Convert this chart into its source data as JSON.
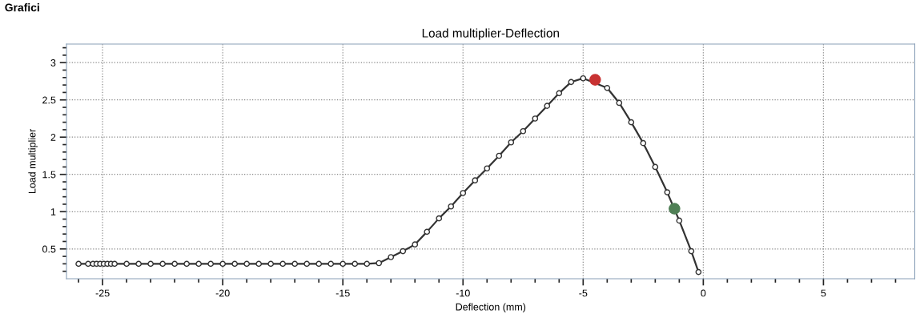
{
  "chart_data": {
    "type": "line",
    "title": "Load multiplier-Deflection",
    "xlabel": "Deflection (mm)",
    "ylabel": "Load multiplier",
    "annotations": [
      "Grafici"
    ],
    "xlim": [
      -26.5,
      8.8
    ],
    "ylim": [
      0.1,
      3.25
    ],
    "xticks": [
      {
        "value": -26,
        "label": null
      },
      -25,
      {
        "value": -24,
        "label": null
      },
      {
        "value": -23,
        "label": null
      },
      {
        "value": -22,
        "label": null
      },
      {
        "value": -21,
        "label": null
      },
      -20,
      {
        "value": -19,
        "label": null
      },
      {
        "value": -18,
        "label": null
      },
      {
        "value": -17,
        "label": null
      },
      {
        "value": -16,
        "label": null
      },
      -15,
      {
        "value": -14,
        "label": null
      },
      {
        "value": -13,
        "label": null
      },
      {
        "value": -12,
        "label": null
      },
      {
        "value": -11,
        "label": null
      },
      -10,
      {
        "value": -9,
        "label": null
      },
      {
        "value": -8,
        "label": null
      },
      {
        "value": -7,
        "label": null
      },
      {
        "value": -6,
        "label": null
      },
      -5,
      {
        "value": -4,
        "label": null
      },
      {
        "value": -3,
        "label": null
      },
      {
        "value": -2,
        "label": null
      },
      {
        "value": -1,
        "label": null
      },
      0,
      {
        "value": 1,
        "label": null
      },
      {
        "value": 2,
        "label": null
      },
      {
        "value": 3,
        "label": null
      },
      {
        "value": 4,
        "label": null
      },
      5,
      {
        "value": 6,
        "label": null
      },
      {
        "value": 7,
        "label": null
      },
      {
        "value": 8,
        "label": null
      }
    ],
    "yticks": [
      {
        "value": 0.2,
        "label": null
      },
      {
        "value": 0.3,
        "label": null
      },
      {
        "value": 0.4,
        "label": null
      },
      0.5,
      {
        "value": 0.6,
        "label": null
      },
      {
        "value": 0.7,
        "label": null
      },
      {
        "value": 0.8,
        "label": null
      },
      {
        "value": 0.9,
        "label": null
      },
      1,
      {
        "value": 1.1,
        "label": null
      },
      {
        "value": 1.2,
        "label": null
      },
      {
        "value": 1.3,
        "label": null
      },
      {
        "value": 1.4,
        "label": null
      },
      1.5,
      {
        "value": 1.6,
        "label": null
      },
      {
        "value": 1.7,
        "label": null
      },
      {
        "value": 1.8,
        "label": null
      },
      {
        "value": 1.9,
        "label": null
      },
      2,
      {
        "value": 2.1,
        "label": null
      },
      {
        "value": 2.2,
        "label": null
      },
      {
        "value": 2.3,
        "label": null
      },
      {
        "value": 2.4,
        "label": null
      },
      2.5,
      {
        "value": 2.6,
        "label": null
      },
      {
        "value": 2.7,
        "label": null
      },
      {
        "value": 2.8,
        "label": null
      },
      {
        "value": 2.9,
        "label": null
      },
      3,
      {
        "value": 3.1,
        "label": null
      },
      {
        "value": 3.2,
        "label": null
      }
    ],
    "grid": true,
    "marker": "circle",
    "line_style": "solid",
    "series": [
      {
        "color": "#333333",
        "x": [
          -26,
          -25.6,
          -25.4,
          -25.25,
          -25.1,
          -24.95,
          -24.8,
          -24.65,
          -24.5,
          -24,
          -23.5,
          -23,
          -22.5,
          -22,
          -21.5,
          -21,
          -20.5,
          -20,
          -19.5,
          -19,
          -18.5,
          -18,
          -17.5,
          -17,
          -16.5,
          -16,
          -15.5,
          -15,
          -14.5,
          -14,
          -13.5,
          -13,
          -12.5,
          -12,
          -11.5,
          -11,
          -10.5,
          -10,
          -9.5,
          -9,
          -8.5,
          -8,
          -7.5,
          -7,
          -6.5,
          -6,
          -5.5,
          -5,
          -4,
          -3.5,
          -3,
          -2.5,
          -2,
          -1.5,
          -1,
          -0.5,
          -0.2
        ],
        "values": [
          0.3,
          0.3,
          0.3,
          0.3,
          0.3,
          0.3,
          0.3,
          0.3,
          0.3,
          0.3,
          0.3,
          0.3,
          0.3,
          0.3,
          0.3,
          0.3,
          0.3,
          0.3,
          0.3,
          0.3,
          0.3,
          0.3,
          0.3,
          0.3,
          0.3,
          0.3,
          0.3,
          0.3,
          0.3,
          0.3,
          0.31,
          0.39,
          0.47,
          0.56,
          0.73,
          0.91,
          1.07,
          1.25,
          1.42,
          1.58,
          1.75,
          1.93,
          2.08,
          2.25,
          2.42,
          2.59,
          2.74,
          2.79,
          2.66,
          2.46,
          2.2,
          1.92,
          1.6,
          1.26,
          0.88,
          0.47,
          0.19
        ]
      },
      {
        "type": "scatter",
        "color": "#c83232",
        "x": [
          -4.5
        ],
        "values": [
          2.77
        ]
      },
      {
        "type": "scatter",
        "color": "#4f7f55",
        "x": [
          -1.2
        ],
        "values": [
          1.04
        ]
      }
    ]
  }
}
